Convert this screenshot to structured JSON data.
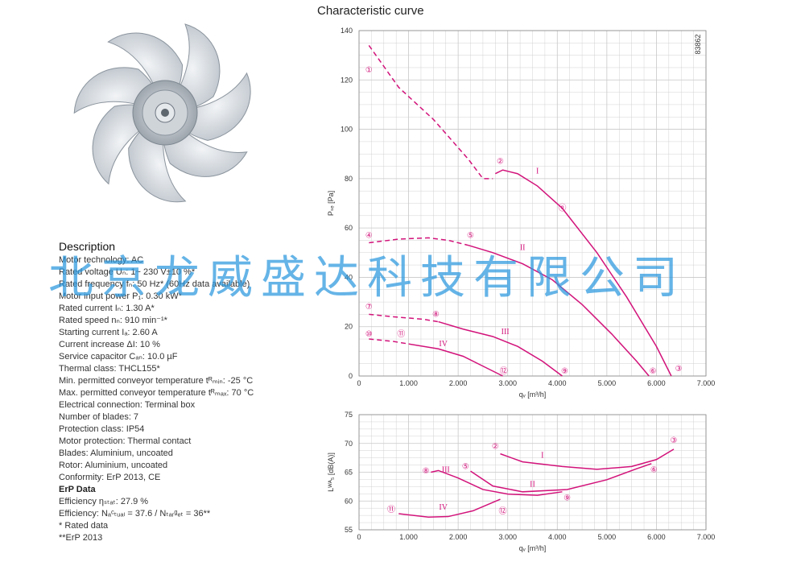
{
  "chart_title": "Characteristic curve",
  "image_code": "83862",
  "watermark": "北京龙威盛达科技有限公司",
  "description": {
    "heading": "Description",
    "lines": [
      "Motor technology: AC",
      "Rated voltage Uₙ: 1~ 230 V±10 %*",
      "Rated frequency fₙ: 50 Hz* (60Hz data available)",
      "Motor input power P₁: 0.30 kW*",
      "Rated current Iₙ: 1.30 A*",
      "Rated speed nₙ: 910 min⁻¹*",
      "Starting current Iₐ: 2.60 A",
      "Current increase ΔI: 10 %",
      "Service capacitor Cₐₙ: 10.0 µF",
      "Thermal class: THCL155*",
      "Min. permitted conveyor temperature tᴿₘᵢₙ: -25 °C",
      "Max. permitted conveyor temperature tᴿₘₐₓ: 70 °C",
      "Electrical connection: Terminal box",
      "Number of blades: 7",
      "Protection class: IP54",
      "Motor protection: Thermal contact",
      "Blades: Aluminium, uncoated",
      "Rotor: Aluminium, uncoated",
      "Conformity: ErP 2013, CE"
    ],
    "erp_heading": "ErP Data",
    "erp_lines": [
      "Efficiency ηₛₜₐₜ: 27.9 %",
      "Efficiency: Nₐᶜₜᵤₐₗ = 37.6 / Nₜₐᵣᵍₑₜ = 36**",
      "* Rated data",
      "**ErP 2013"
    ]
  },
  "colors": {
    "curve": "#d2127a",
    "grid": "#c8c8c8",
    "watermark": "#2a98df"
  },
  "chart_data": [
    {
      "type": "line",
      "ylabel": "Pₛₑ [Pa]",
      "xlabel": "qᵥ [m³/h]",
      "xlim": [
        0,
        7000
      ],
      "ylim": [
        0,
        140
      ],
      "x_ticks": [
        0,
        1000,
        2000,
        3000,
        4000,
        5000,
        6000,
        7000
      ],
      "x_tick_labels": [
        "0",
        "1.000",
        "2.000",
        "3.000",
        "4.000",
        "5.000",
        "6.000",
        "7.000"
      ],
      "y_ticks": [
        0,
        20,
        40,
        60,
        80,
        100,
        120,
        140
      ],
      "y_tick_labels": [
        "0",
        "20",
        "40",
        "60",
        "80",
        "100",
        "120",
        "140"
      ],
      "series": [
        {
          "name": "I",
          "dashed": [
            [
              200,
              134
            ],
            [
              800,
              117
            ],
            [
              1500,
              104
            ],
            [
              2200,
              88
            ],
            [
              2500,
              80
            ],
            [
              2700,
              80
            ]
          ],
          "solid": [
            [
              2750,
              82
            ],
            [
              2900,
              83.5
            ],
            [
              3200,
              82
            ],
            [
              3600,
              77
            ],
            [
              4100,
              68
            ],
            [
              4800,
              50
            ],
            [
              5400,
              32
            ],
            [
              6000,
              12
            ],
            [
              6300,
              0
            ]
          ]
        },
        {
          "name": "II",
          "dashed": [
            [
              200,
              54
            ],
            [
              800,
              55.5
            ],
            [
              1400,
              56
            ],
            [
              1800,
              55
            ],
            [
              2200,
              53
            ]
          ],
          "solid": [
            [
              2200,
              53
            ],
            [
              2700,
              50
            ],
            [
              3300,
              45.5
            ],
            [
              3900,
              39
            ],
            [
              4500,
              29
            ],
            [
              5100,
              17
            ],
            [
              5600,
              6
            ],
            [
              5850,
              0
            ]
          ]
        },
        {
          "name": "III",
          "dashed": [
            [
              200,
              25
            ],
            [
              700,
              24
            ],
            [
              1300,
              23
            ],
            [
              1600,
              22
            ]
          ],
          "solid": [
            [
              1600,
              22
            ],
            [
              2100,
              19
            ],
            [
              2700,
              16
            ],
            [
              3200,
              12
            ],
            [
              3700,
              6
            ],
            [
              4100,
              0
            ]
          ]
        },
        {
          "name": "IV",
          "dashed": [
            [
              200,
              15
            ],
            [
              700,
              14
            ],
            [
              1000,
              13
            ]
          ],
          "solid": [
            [
              1000,
              13
            ],
            [
              1600,
              11
            ],
            [
              2100,
              8
            ],
            [
              2500,
              4
            ],
            [
              2900,
              0
            ]
          ]
        }
      ],
      "point_labels": [
        {
          "label": "①",
          "x": 200,
          "y": 124
        },
        {
          "label": "②",
          "x": 2850,
          "y": 87
        },
        {
          "label": "③",
          "x": 6450,
          "y": 3
        },
        {
          "label": "④",
          "x": 200,
          "y": 57
        },
        {
          "label": "⑤",
          "x": 2250,
          "y": 57
        },
        {
          "label": "⑥",
          "x": 5930,
          "y": 2
        },
        {
          "label": "⑦",
          "x": 200,
          "y": 28
        },
        {
          "label": "⑧",
          "x": 1550,
          "y": 25
        },
        {
          "label": "⑨",
          "x": 4150,
          "y": 2
        },
        {
          "label": "⑩",
          "x": 200,
          "y": 17
        },
        {
          "label": "⑪",
          "x": 850,
          "y": 17
        },
        {
          "label": "⑫",
          "x": 2920,
          "y": 2
        },
        {
          "label": "ⓝ",
          "x": 4100,
          "y": 68
        }
      ],
      "roman_labels": [
        {
          "label": "I",
          "x": 3600,
          "y": 82
        },
        {
          "label": "II",
          "x": 3300,
          "y": 51
        },
        {
          "label": "III",
          "x": 2950,
          "y": 17
        },
        {
          "label": "IV",
          "x": 1700,
          "y": 12
        }
      ]
    },
    {
      "type": "line",
      "ylabel": "Lᵂᴬ₅ [dB(A)]",
      "xlabel": "qᵥ [m³/h]",
      "xlim": [
        0,
        7000
      ],
      "ylim": [
        55,
        75
      ],
      "x_ticks": [
        0,
        1000,
        2000,
        3000,
        4000,
        5000,
        6000,
        7000
      ],
      "x_tick_labels": [
        "0",
        "1.000",
        "2.000",
        "3.000",
        "4.000",
        "5.000",
        "6.000",
        "7.000"
      ],
      "y_ticks": [
        55,
        60,
        65,
        70,
        75
      ],
      "y_tick_labels": [
        "55",
        "60",
        "65",
        "70",
        "75"
      ],
      "series": [
        {
          "name": "I",
          "solid": [
            [
              2850,
              68.2
            ],
            [
              3300,
              66.8
            ],
            [
              4100,
              66
            ],
            [
              4800,
              65.5
            ],
            [
              5500,
              66
            ],
            [
              6000,
              67.2
            ],
            [
              6350,
              69
            ]
          ]
        },
        {
          "name": "II",
          "solid": [
            [
              2250,
              65.2
            ],
            [
              2700,
              62.6
            ],
            [
              3300,
              61.6
            ],
            [
              4200,
              62
            ],
            [
              5000,
              63.7
            ],
            [
              5600,
              65.6
            ],
            [
              5900,
              66.5
            ]
          ]
        },
        {
          "name": "III",
          "solid": [
            [
              1450,
              65
            ],
            [
              1600,
              65.3
            ],
            [
              2000,
              64
            ],
            [
              2500,
              62
            ],
            [
              3000,
              61.2
            ],
            [
              3600,
              61
            ],
            [
              4100,
              61.6
            ]
          ]
        },
        {
          "name": "IV",
          "solid": [
            [
              800,
              57.8
            ],
            [
              1400,
              57.2
            ],
            [
              1800,
              57.3
            ],
            [
              2300,
              58.3
            ],
            [
              2850,
              60.3
            ]
          ]
        }
      ],
      "point_labels": [
        {
          "label": "②",
          "x": 2750,
          "y": 69.5
        },
        {
          "label": "③",
          "x": 6350,
          "y": 70.5
        },
        {
          "label": "⑤",
          "x": 2150,
          "y": 66
        },
        {
          "label": "⑥",
          "x": 5950,
          "y": 65.4
        },
        {
          "label": "⑧",
          "x": 1350,
          "y": 65.2
        },
        {
          "label": "⑨",
          "x": 4200,
          "y": 60.5
        },
        {
          "label": "⑪",
          "x": 650,
          "y": 58.5
        },
        {
          "label": "⑫",
          "x": 2900,
          "y": 58.2
        }
      ],
      "roman_labels": [
        {
          "label": "I",
          "x": 3700,
          "y": 67.5
        },
        {
          "label": "II",
          "x": 3500,
          "y": 62.5
        },
        {
          "label": "III",
          "x": 1750,
          "y": 65
        },
        {
          "label": "IV",
          "x": 1700,
          "y": 58.5
        }
      ]
    }
  ]
}
